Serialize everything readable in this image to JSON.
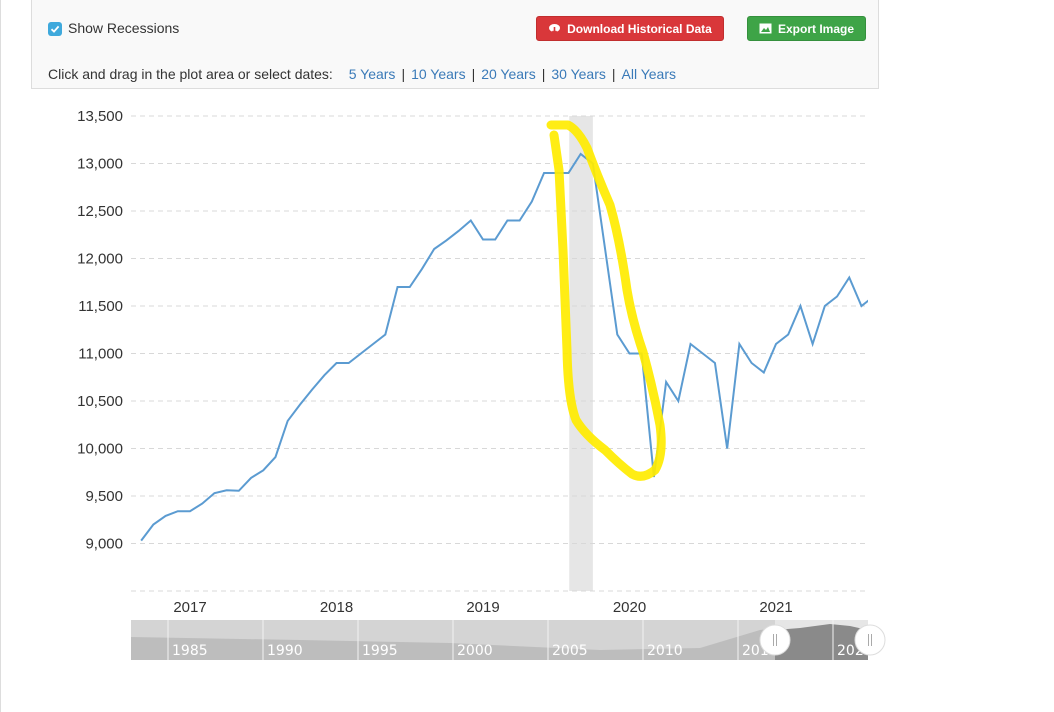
{
  "controls": {
    "show_recessions_label": "Show Recessions",
    "show_recessions_checked": true,
    "download_label": "Download Historical Data",
    "export_label": "Export Image",
    "range_prompt": "Click and drag in the plot area or select dates:",
    "ranges": [
      "5 Years",
      "10 Years",
      "20 Years",
      "30 Years",
      "All Years"
    ]
  },
  "colors": {
    "line": "#5b9bd1",
    "recession": "#e6e6e6",
    "annotation": "#ffec00",
    "download": "#d9373a",
    "export": "#3ea447",
    "link": "#3a7ab8"
  },
  "icons": {
    "checkbox": "check-icon",
    "download": "cloud-download-icon",
    "export": "image-icon"
  },
  "chart_data": {
    "type": "line",
    "ylim": [
      8500,
      13500
    ],
    "y_ticks": [
      "13,500",
      "13,000",
      "12,500",
      "12,000",
      "11,500",
      "11,000",
      "10,500",
      "10,000",
      "9,500",
      "9,000"
    ],
    "y_tick_values": [
      13500,
      13000,
      12500,
      12000,
      11500,
      11000,
      10500,
      10000,
      9500,
      9000
    ],
    "x_ticks": [
      "2017",
      "2018",
      "2019",
      "2020",
      "2021"
    ],
    "grid": true,
    "recession": [
      "2019-08-03",
      "2019-10-01"
    ],
    "annotation": "yellow freehand loop around the drop from peak to trough",
    "x": [
      "2016-09",
      "2016-10",
      "2016-11",
      "2016-12",
      "2017-01",
      "2017-02",
      "2017-03",
      "2017-04",
      "2017-05",
      "2017-06",
      "2017-07",
      "2017-08",
      "2017-09",
      "2017-10",
      "2017-11",
      "2017-12",
      "2018-01",
      "2018-02",
      "2018-03",
      "2018-04",
      "2018-05",
      "2018-06",
      "2018-07",
      "2018-08",
      "2018-09",
      "2018-10",
      "2018-11",
      "2018-12",
      "2019-01",
      "2019-02",
      "2019-03",
      "2019-04",
      "2019-05",
      "2019-06",
      "2019-07",
      "2019-08",
      "2019-09",
      "2019-10",
      "2019-11",
      "2019-12",
      "2020-01",
      "2020-02",
      "2020-03",
      "2020-04",
      "2020-05",
      "2020-06",
      "2020-07",
      "2020-08",
      "2020-09",
      "2020-10",
      "2020-11",
      "2020-12",
      "2021-01",
      "2021-02",
      "2021-03",
      "2021-04",
      "2021-05",
      "2021-06",
      "2021-07",
      "2021-08",
      "2021-09"
    ],
    "values": [
      9030,
      9200,
      9290,
      9340,
      9340,
      9420,
      9530,
      9560,
      9555,
      9690,
      9770,
      9910,
      10290,
      10460,
      10620,
      10770,
      10900,
      10900,
      11000,
      11100,
      11200,
      11700,
      11700,
      11890,
      12100,
      12190,
      12290,
      12400,
      12200,
      12200,
      12400,
      12400,
      12600,
      12900,
      12900,
      12900,
      13100,
      13000,
      12100,
      11200,
      11000,
      11000,
      9700,
      10700,
      10500,
      11100,
      11000,
      10900,
      10000,
      11100,
      10900,
      10800,
      11100,
      11200,
      11500,
      11100,
      11500,
      11600,
      11800,
      11500,
      11600
    ],
    "navigator": {
      "labels": [
        "1985",
        "1990",
        "1995",
        "2000",
        "2005",
        "2010",
        "201",
        "202"
      ]
    }
  }
}
